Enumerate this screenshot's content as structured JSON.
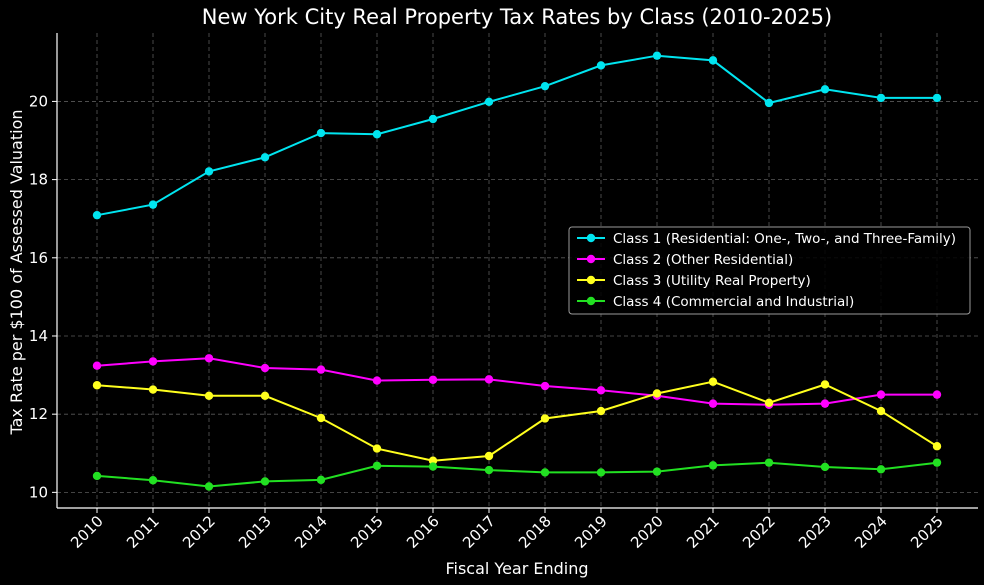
{
  "chart_data": {
    "type": "line",
    "title": "New York City Real Property Tax Rates by Class (2010-2025)",
    "xlabel": "Fiscal Year Ending",
    "ylabel": "Tax Rate per $100 of Assessed Valuation",
    "x": [
      2010,
      2011,
      2012,
      2013,
      2014,
      2015,
      2016,
      2017,
      2018,
      2019,
      2020,
      2021,
      2022,
      2023,
      2024,
      2025
    ],
    "ylim": [
      9.6,
      21.75
    ],
    "yticks": [
      10,
      12,
      14,
      16,
      18,
      20
    ],
    "grid": true,
    "legend_position": "center-right",
    "series": [
      {
        "name": "Class 1 (Residential: One-, Two-, and Three-Family)",
        "color": "#00e5f0",
        "values": [
          17.09,
          17.36,
          18.21,
          18.57,
          19.19,
          19.16,
          19.55,
          19.99,
          20.39,
          20.92,
          21.17,
          21.05,
          19.96,
          20.31,
          20.09,
          20.09
        ]
      },
      {
        "name": "Class 2 (Other Residential)",
        "color": "#ff00ff",
        "values": [
          13.24,
          13.35,
          13.43,
          13.18,
          13.14,
          12.86,
          12.88,
          12.89,
          12.72,
          12.61,
          12.47,
          12.27,
          12.24,
          12.27,
          12.5,
          12.5
        ]
      },
      {
        "name": "Class 3 (Utility Real Property)",
        "color": "#ffff1e",
        "values": [
          12.74,
          12.63,
          12.47,
          12.47,
          11.9,
          11.12,
          10.81,
          10.93,
          11.89,
          12.08,
          12.53,
          12.83,
          12.29,
          12.76,
          12.08,
          11.18
        ]
      },
      {
        "name": "Class 4 (Commercial and Industrial)",
        "color": "#22e022",
        "values": [
          10.42,
          10.31,
          10.15,
          10.28,
          10.32,
          10.68,
          10.66,
          10.57,
          10.51,
          10.51,
          10.53,
          10.69,
          10.76,
          10.65,
          10.59,
          10.76
        ]
      }
    ]
  }
}
